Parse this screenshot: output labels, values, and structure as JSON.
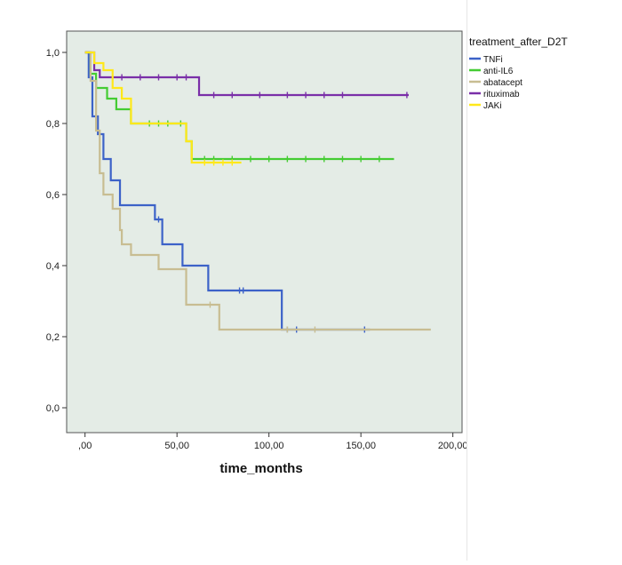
{
  "chart_data": {
    "type": "line",
    "title": "",
    "xlabel": "time_months",
    "ylabel": "",
    "xlim": [
      -10,
      205
    ],
    "ylim": [
      -0.07,
      1.06
    ],
    "x_ticks": [
      0,
      50,
      100,
      150,
      200
    ],
    "x_tick_labels": [
      ",00",
      "50,00",
      "100,00",
      "150,00",
      "200,00"
    ],
    "y_ticks": [
      0,
      0.2,
      0.4,
      0.6,
      0.8,
      1.0
    ],
    "y_tick_labels": [
      "0,0",
      "0,2",
      "0,4",
      "0,6",
      "0,8",
      "1,0"
    ],
    "grid": false,
    "plot_background": "#e4ece6",
    "legend": {
      "title": "treatment_after_D2T",
      "position": "right"
    },
    "series": [
      {
        "name": "TNFi",
        "color": "#3c62c8",
        "x": [
          0,
          2,
          4,
          7,
          10,
          14,
          19,
          24,
          38,
          42,
          53,
          67,
          107,
          155
        ],
        "y": [
          1.0,
          0.93,
          0.82,
          0.77,
          0.7,
          0.64,
          0.57,
          0.57,
          0.53,
          0.46,
          0.4,
          0.33,
          0.22,
          0.22
        ],
        "censored_x": [
          40,
          84,
          86,
          110,
          115,
          152
        ],
        "censored_y": [
          0.53,
          0.33,
          0.33,
          0.22,
          0.22,
          0.22
        ]
      },
      {
        "name": "anti-IL6",
        "color": "#44cc33",
        "x": [
          0,
          3,
          6,
          12,
          17,
          25,
          28,
          55,
          58,
          62,
          168
        ],
        "y": [
          1.0,
          0.94,
          0.9,
          0.87,
          0.84,
          0.8,
          0.8,
          0.75,
          0.7,
          0.7,
          0.7
        ],
        "censored_x": [
          35,
          40,
          45,
          52,
          65,
          70,
          80,
          90,
          100,
          110,
          120,
          130,
          140,
          150,
          160
        ],
        "censored_y": [
          0.8,
          0.8,
          0.8,
          0.8,
          0.7,
          0.7,
          0.7,
          0.7,
          0.7,
          0.7,
          0.7,
          0.7,
          0.7,
          0.7,
          0.7
        ]
      },
      {
        "name": "abatacept",
        "color": "#c8bd92",
        "x": [
          0,
          3,
          6,
          8,
          10,
          15,
          19,
          20,
          25,
          40,
          55,
          73,
          188
        ],
        "y": [
          1.0,
          0.92,
          0.78,
          0.66,
          0.6,
          0.56,
          0.5,
          0.46,
          0.43,
          0.39,
          0.29,
          0.22,
          0.22
        ],
        "censored_x": [
          68,
          110,
          125
        ],
        "censored_y": [
          0.29,
          0.22,
          0.22
        ]
      },
      {
        "name": "rituximab",
        "color": "#7a2fa8",
        "x": [
          0,
          5,
          8,
          60,
          62,
          176
        ],
        "y": [
          1.0,
          0.95,
          0.93,
          0.93,
          0.88,
          0.88
        ],
        "censored_x": [
          20,
          30,
          40,
          50,
          55,
          70,
          80,
          95,
          110,
          120,
          130,
          140,
          175
        ],
        "censored_y": [
          0.93,
          0.93,
          0.93,
          0.93,
          0.93,
          0.88,
          0.88,
          0.88,
          0.88,
          0.88,
          0.88,
          0.88,
          0.88
        ]
      },
      {
        "name": "JAKi",
        "color": "#ffe81a",
        "x": [
          0,
          5,
          10,
          15,
          20,
          25,
          45,
          55,
          58,
          61,
          85
        ],
        "y": [
          1.0,
          0.97,
          0.95,
          0.9,
          0.87,
          0.8,
          0.8,
          0.75,
          0.69,
          0.69,
          0.69
        ],
        "censored_x": [
          65,
          70,
          75,
          80
        ],
        "censored_y": [
          0.69,
          0.69,
          0.69,
          0.69
        ]
      }
    ]
  }
}
